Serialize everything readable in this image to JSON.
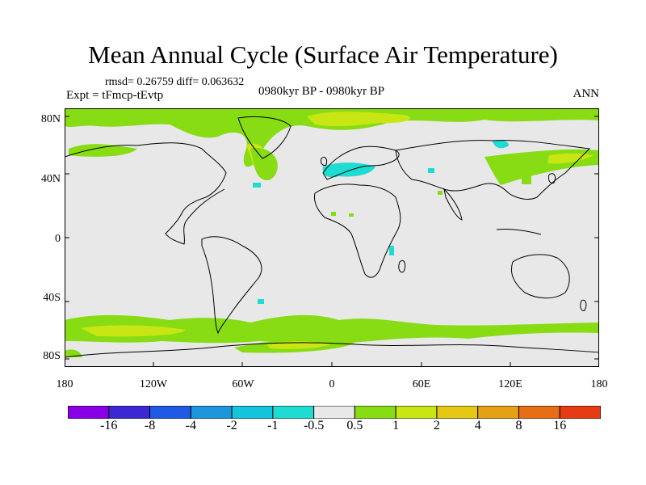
{
  "title": "Mean Annual Cycle (Surface Air Temperature)",
  "stats": "rmsd= 0.26759 diff= 0.063632",
  "experiment": "Expt = tFmcp-tEvtp",
  "period": "0980kyr BP - 0980kyr BP",
  "season": "ANN",
  "lat_labels": [
    "80N",
    "40N",
    "0",
    "40S",
    "80S"
  ],
  "lon_labels": [
    "180",
    "120W",
    "60W",
    "0",
    "60E",
    "120E",
    "180"
  ],
  "legend": {
    "colors": [
      "#8a00e6",
      "#3c28d2",
      "#1e5ae6",
      "#1e96dc",
      "#14c3dc",
      "#1edcd2",
      "#e8e8e8",
      "#87dc14",
      "#c8e614",
      "#e6c814",
      "#e6a014",
      "#e66e14",
      "#e63c14"
    ],
    "labels": [
      "-16",
      "-8",
      "-4",
      "-2",
      "-1",
      "-0.5",
      "0.5",
      "1",
      "2",
      "4",
      "8",
      "16"
    ]
  },
  "colors": {
    "background": "#e8e8e8",
    "green": "#87dc14",
    "yellowgreen": "#c8e614",
    "cyan": "#1edcd2",
    "coast": "#000000"
  }
}
